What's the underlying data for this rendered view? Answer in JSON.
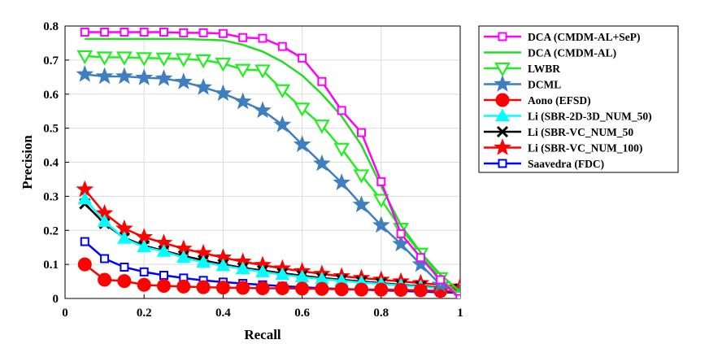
{
  "chart_data": {
    "type": "line",
    "title": "",
    "xlabel": "Recall",
    "ylabel": "Precision",
    "xlim": [
      0,
      1
    ],
    "ylim": [
      0,
      0.8
    ],
    "xticks": [
      "0",
      "0.2",
      "0.4",
      "0.6",
      "0.8",
      "1"
    ],
    "yticks": [
      "0",
      "0.1",
      "0.2",
      "0.3",
      "0.4",
      "0.5",
      "0.6",
      "0.7",
      "0.8"
    ],
    "grid": true,
    "legend_position": "right",
    "x": [
      0.05,
      0.1,
      0.15,
      0.2,
      0.25,
      0.3,
      0.35,
      0.4,
      0.45,
      0.5,
      0.55,
      0.6,
      0.65,
      0.7,
      0.75,
      0.8,
      0.85,
      0.9,
      0.95,
      1.0
    ],
    "series": [
      {
        "name": "DCA (CMDM-AL+SeP)",
        "color": "#ff00ff",
        "marker": "square",
        "values": [
          0.782,
          0.782,
          0.782,
          0.782,
          0.782,
          0.78,
          0.78,
          0.778,
          0.766,
          0.764,
          0.74,
          0.706,
          0.637,
          0.552,
          0.487,
          0.343,
          0.19,
          0.12,
          0.055,
          0.0
        ]
      },
      {
        "name": "DCA (CMDM-AL)",
        "color": "#22dd22",
        "marker": "none",
        "values": [
          0.762,
          0.762,
          0.762,
          0.762,
          0.762,
          0.762,
          0.76,
          0.758,
          0.745,
          0.725,
          0.695,
          0.655,
          0.6,
          0.535,
          0.45,
          0.33,
          0.215,
          0.135,
          0.07,
          0.02
        ]
      },
      {
        "name": "LWBR",
        "color": "#22ee22",
        "marker": "triangle-down",
        "values": [
          0.712,
          0.708,
          0.708,
          0.706,
          0.705,
          0.703,
          0.7,
          0.69,
          0.672,
          0.67,
          0.612,
          0.558,
          0.508,
          0.44,
          0.362,
          0.29,
          0.205,
          0.132,
          0.06,
          0.005
        ]
      },
      {
        "name": "DCML",
        "color": "#3f7fc0",
        "marker": "star",
        "values": [
          0.658,
          0.652,
          0.652,
          0.648,
          0.646,
          0.636,
          0.62,
          0.602,
          0.578,
          0.552,
          0.51,
          0.452,
          0.396,
          0.34,
          0.275,
          0.215,
          0.16,
          0.1,
          0.04,
          0.015
        ]
      },
      {
        "name": "Aono (EFSD)",
        "color": "#ff0000",
        "marker": "circle",
        "values": [
          0.1,
          0.055,
          0.051,
          0.04,
          0.037,
          0.035,
          0.033,
          0.032,
          0.031,
          0.03,
          0.03,
          0.029,
          0.028,
          0.027,
          0.026,
          0.026,
          0.025,
          0.024,
          0.022,
          0.02
        ]
      },
      {
        "name": "Li (SBR-2D-3D_NUM_50)",
        "color": "#00ffff",
        "marker": "triangle-up",
        "values": [
          0.292,
          0.226,
          0.176,
          0.151,
          0.138,
          0.12,
          0.106,
          0.096,
          0.087,
          0.078,
          0.07,
          0.063,
          0.057,
          0.052,
          0.047,
          0.043,
          0.038,
          0.034,
          0.03,
          0.025
        ]
      },
      {
        "name": "Li (SBR-VC_NUM_50",
        "color": "#000000",
        "marker": "x",
        "values": [
          0.278,
          0.22,
          0.178,
          0.155,
          0.14,
          0.125,
          0.112,
          0.1,
          0.09,
          0.082,
          0.074,
          0.067,
          0.06,
          0.055,
          0.05,
          0.045,
          0.04,
          0.036,
          0.032,
          0.028
        ]
      },
      {
        "name": "Li (SBR-VC_NUM_100)",
        "color": "#ff0000",
        "marker": "star",
        "values": [
          0.32,
          0.25,
          0.205,
          0.18,
          0.163,
          0.146,
          0.133,
          0.12,
          0.108,
          0.098,
          0.088,
          0.08,
          0.072,
          0.065,
          0.06,
          0.055,
          0.05,
          0.045,
          0.04,
          0.035
        ]
      },
      {
        "name": "Saavedra (FDC)",
        "color": "#0000ff",
        "marker": "square",
        "values": [
          0.167,
          0.117,
          0.092,
          0.078,
          0.068,
          0.06,
          0.053,
          0.048,
          0.044,
          0.04,
          0.036,
          0.033,
          0.03,
          0.028,
          0.026,
          0.024,
          0.022,
          0.02,
          0.018,
          0.017
        ]
      }
    ]
  }
}
